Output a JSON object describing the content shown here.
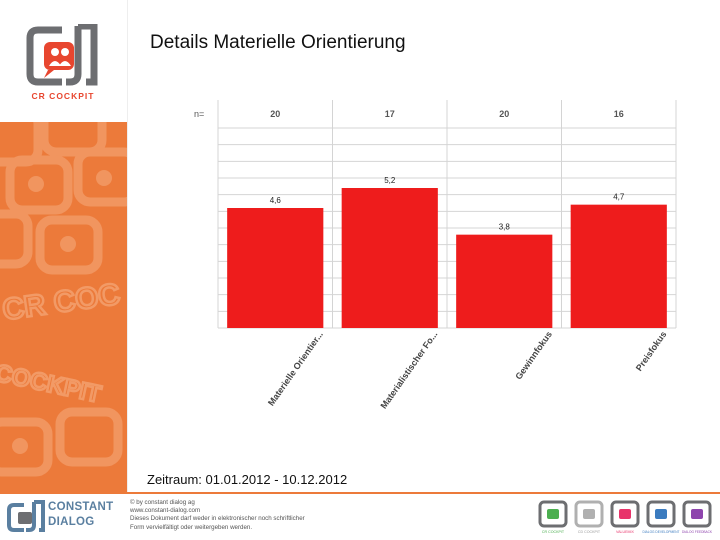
{
  "title": "Details Materielle Orientierung",
  "period": "Zeitraum: 01.01.2012 - 10.12.2012",
  "logo": {
    "text": "CR COCKPIT"
  },
  "sidebar": {
    "watermark_texts": [
      "CR COC",
      "COCKPIT"
    ]
  },
  "footer": {
    "brand_line1": "CONSTANT",
    "brand_line2": "DIALOG",
    "text_lines": [
      "© by constant dialog ag",
      "www.constant-dialog.com",
      "Dieses Dokument darf weder in elektronischer noch schriftlicher",
      "Form vervielfältigt oder weitergeben werden."
    ],
    "icon_labels": [
      "CR COCKPIT",
      "CD COCKPIT",
      "VALUEMIX",
      "DIALOG DEVELOPMENT",
      "DIALOG FEEDBACK"
    ]
  },
  "colors": {
    "accent": "#ec7a3a",
    "bar": "#ee1c1c",
    "logo_red": "#e8462f",
    "logo_gray": "#6d6e71",
    "brand_blue": "#5a7fa0"
  },
  "chart_data": {
    "type": "bar",
    "categories": [
      "Materielle Orientier...",
      "Materialistischer Fo...",
      "Gewinnfokus",
      "Preisfokus"
    ],
    "values": [
      4.6,
      5.2,
      3.8,
      4.7
    ],
    "value_labels": [
      "4,6",
      "5,2",
      "3,8",
      "4,7"
    ],
    "n_label": "n=",
    "n_values": [
      "20",
      "17",
      "20",
      "16"
    ],
    "ylim": [
      1,
      7
    ],
    "grid": true,
    "legend": "none",
    "xlabel": "",
    "ylabel": ""
  }
}
